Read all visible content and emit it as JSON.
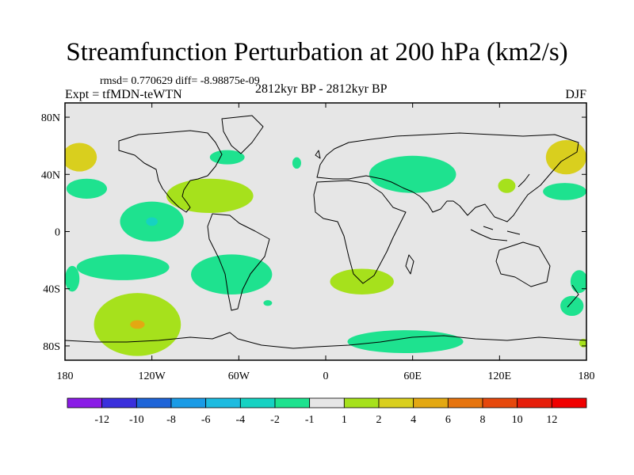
{
  "chart_data": {
    "type": "contour-map",
    "title": "Streamfunction Perturbation at 200 hPa (km2/s)",
    "stats": "rmsd= 0.770629 diff= -8.98875e-09",
    "experiment": "Expt = tfMDN-teWTN",
    "period": "2812kyr BP - 2812kyr BP",
    "season": "DJF",
    "x_ticks": [
      "180",
      "120W",
      "60W",
      "0",
      "60E",
      "120E",
      "180"
    ],
    "x_values": [
      -180,
      -120,
      -60,
      0,
      60,
      120,
      180
    ],
    "y_ticks": [
      "80N",
      "40N",
      "0",
      "40S",
      "80S"
    ],
    "y_values": [
      80,
      40,
      0,
      -40,
      -80
    ],
    "xlim": [
      -180,
      180
    ],
    "ylim": [
      -90,
      90
    ],
    "colorbar_labels": [
      "-12",
      "-10",
      "-8",
      "-6",
      "-4",
      "-2",
      "-1",
      "1",
      "2",
      "4",
      "6",
      "8",
      "10",
      "12"
    ],
    "colorbar_colors": [
      "#8a1ce6",
      "#3a2fdc",
      "#1e64d8",
      "#1a9be6",
      "#1dbbe0",
      "#16d2c2",
      "#1ee28f",
      "#e6e6e6",
      "#a6e11c",
      "#d9cf1e",
      "#e3a812",
      "#e6740e",
      "#e6480c",
      "#e61e0a",
      "#f00000"
    ],
    "background_color": "#e6e6e6",
    "anomaly_regions": [
      {
        "level": "2 to 4",
        "lon": -170,
        "lat": 52,
        "rx": 12,
        "ry": 10
      },
      {
        "level": "2 to 4",
        "lon": 166,
        "lat": 52,
        "rx": 14,
        "ry": 12
      },
      {
        "level": "-2 to -1",
        "lon": -68,
        "lat": 52,
        "rx": 12,
        "ry": 5
      },
      {
        "level": "-2 to -1",
        "lon": -20,
        "lat": 48,
        "rx": 3,
        "ry": 4
      },
      {
        "level": "-2 to -1",
        "lon": 60,
        "lat": 40,
        "rx": 30,
        "ry": 13
      },
      {
        "level": "-2 to -1",
        "lon": -165,
        "lat": 30,
        "rx": 14,
        "ry": 7
      },
      {
        "level": "-2 to -1",
        "lon": 165,
        "lat": 28,
        "rx": 15,
        "ry": 6
      },
      {
        "level": "1 to 2",
        "lon": 125,
        "lat": 32,
        "rx": 6,
        "ry": 5
      },
      {
        "level": "1 to 2",
        "lon": -80,
        "lat": 25,
        "rx": 30,
        "ry": 12
      },
      {
        "level": "-2 to -1",
        "lon": -120,
        "lat": 7,
        "rx": 22,
        "ry": 14
      },
      {
        "level": "-4 to -2",
        "lon": -120,
        "lat": 7,
        "rx": 4,
        "ry": 3
      },
      {
        "level": "-2 to -1",
        "lon": -140,
        "lat": -25,
        "rx": 32,
        "ry": 9
      },
      {
        "level": "-2 to -1",
        "lon": -65,
        "lat": -30,
        "rx": 28,
        "ry": 14
      },
      {
        "level": "-2 to -1",
        "lon": -175,
        "lat": -33,
        "rx": 5,
        "ry": 9
      },
      {
        "level": "-2 to -1",
        "lon": -40,
        "lat": -50,
        "rx": 3,
        "ry": 2
      },
      {
        "level": "1 to 2",
        "lon": 25,
        "lat": -35,
        "rx": 22,
        "ry": 9
      },
      {
        "level": "1 to 2",
        "lon": -130,
        "lat": -65,
        "rx": 30,
        "ry": 22
      },
      {
        "level": "4 to 6",
        "lon": -130,
        "lat": -65,
        "rx": 5,
        "ry": 3
      },
      {
        "level": "-2 to -1",
        "lon": 55,
        "lat": -77,
        "rx": 40,
        "ry": 8
      },
      {
        "level": "-2 to -1",
        "lon": 175,
        "lat": -35,
        "rx": 6,
        "ry": 8
      },
      {
        "level": "-2 to -1",
        "lon": 170,
        "lat": -52,
        "rx": 8,
        "ry": 7
      },
      {
        "level": "1 to 2",
        "lon": 178,
        "lat": -78,
        "rx": 3,
        "ry": 3
      }
    ]
  }
}
